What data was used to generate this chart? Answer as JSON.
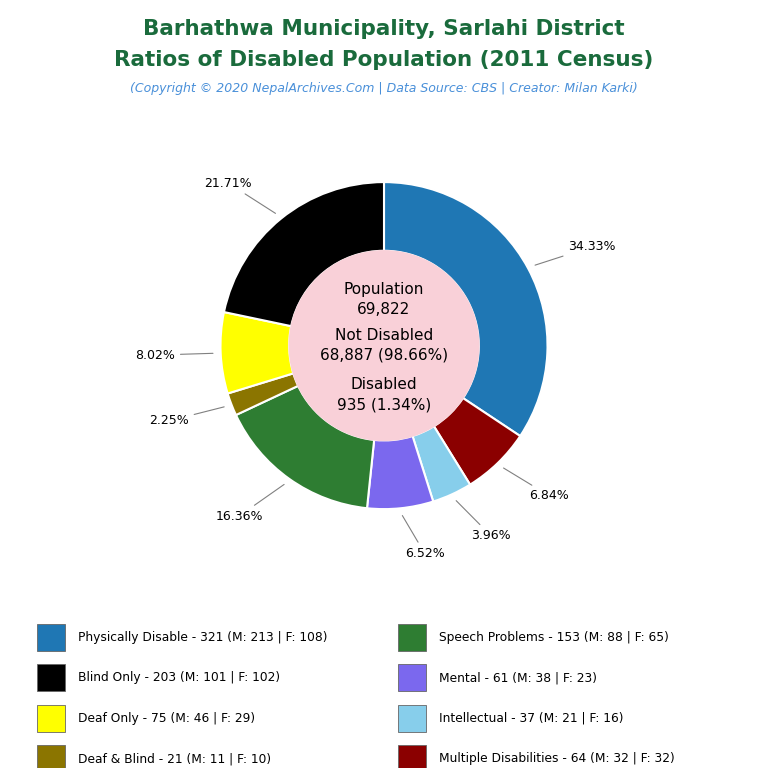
{
  "title_line1": "Barhathwa Municipality, Sarlahi District",
  "title_line2": "Ratios of Disabled Population (2011 Census)",
  "title_color": "#1a6b3c",
  "subtitle": "(Copyright © 2020 NepalArchives.Com | Data Source: CBS | Creator: Milan Karki)",
  "subtitle_color": "#4a90d9",
  "center_bg": "#f9d0d8",
  "slices": [
    {
      "label": "Physically Disable - 321 (M: 213 | F: 108)",
      "value": 321,
      "color": "#1f77b4",
      "pct": "34.33%"
    },
    {
      "label": "Multiple Disabilities - 64 (M: 32 | F: 32)",
      "value": 64,
      "color": "#8b0000",
      "pct": "6.84%"
    },
    {
      "label": "Intellectual - 37 (M: 21 | F: 16)",
      "value": 37,
      "color": "#87ceeb",
      "pct": "3.96%"
    },
    {
      "label": "Mental - 61 (M: 38 | F: 23)",
      "value": 61,
      "color": "#7b68ee",
      "pct": "6.52%"
    },
    {
      "label": "Speech Problems - 153 (M: 88 | F: 65)",
      "value": 153,
      "color": "#2e7d32",
      "pct": "16.36%"
    },
    {
      "label": "Deaf & Blind - 21 (M: 11 | F: 10)",
      "value": 21,
      "color": "#8b7500",
      "pct": "2.25%"
    },
    {
      "label": "Deaf Only - 75 (M: 46 | F: 29)",
      "value": 75,
      "color": "#ffff00",
      "pct": "8.02%"
    },
    {
      "label": "Blind Only - 203 (M: 101 | F: 102)",
      "value": 203,
      "color": "#000000",
      "pct": "21.71%"
    }
  ],
  "legend_entries": [
    {
      "label": "Physically Disable - 321 (M: 213 | F: 108)",
      "color": "#1f77b4"
    },
    {
      "label": "Blind Only - 203 (M: 101 | F: 102)",
      "color": "#000000"
    },
    {
      "label": "Deaf Only - 75 (M: 46 | F: 29)",
      "color": "#ffff00"
    },
    {
      "label": "Deaf & Blind - 21 (M: 11 | F: 10)",
      "color": "#8b7500"
    },
    {
      "label": "Speech Problems - 153 (M: 88 | F: 65)",
      "color": "#2e7d32"
    },
    {
      "label": "Mental - 61 (M: 38 | F: 23)",
      "color": "#7b68ee"
    },
    {
      "label": "Intellectual - 37 (M: 21 | F: 16)",
      "color": "#87ceeb"
    },
    {
      "label": "Multiple Disabilities - 64 (M: 32 | F: 32)",
      "color": "#8b0000"
    }
  ],
  "bg_color": "#ffffff"
}
